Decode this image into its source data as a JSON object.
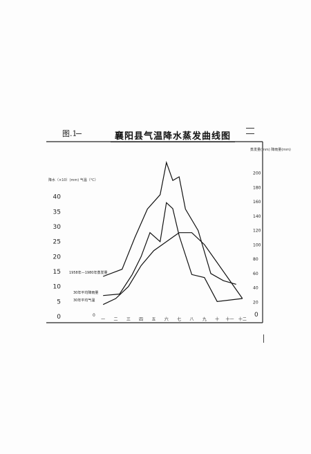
{
  "page": {
    "figure_label": "图.1",
    "title": "襄阳县气温降水蒸发曲线图"
  },
  "chart_data": {
    "type": "line",
    "title": "襄阳县气温降水蒸发曲线图",
    "y_left_label": "降水（×10）(mm) 气温（°C）",
    "y_right_label": "蒸发量(mm) 降雨量(mm)",
    "y_left_ticks": [
      "0",
      "5",
      "10",
      "15",
      "20",
      "25",
      "30",
      "35",
      "40"
    ],
    "y_right_ticks": [
      "20",
      "40",
      "60",
      "80",
      "100",
      "120",
      "140",
      "160",
      "180",
      "200"
    ],
    "y_left_range": [
      0,
      45
    ],
    "y_right_range": [
      0,
      220
    ],
    "x_categories": [
      "一",
      "二",
      "三",
      "四",
      "五",
      "六",
      "七",
      "八",
      "九",
      "十",
      "十一",
      "十二"
    ],
    "x_left_corner_label": "0",
    "x_right_corner_label": "0",
    "grid": false,
    "series": [
      {
        "name": "1958年—1980年蒸发量",
        "axis": "right",
        "x": [
          0.5,
          2,
          3,
          4,
          5,
          5.5,
          6,
          6.5,
          7,
          8,
          9,
          10,
          11
        ],
        "y": [
          56,
          66,
          110,
          150,
          170,
          215,
          190,
          195,
          150,
          120,
          60,
          50,
          45
        ]
      },
      {
        "name": "30年平均降雨量",
        "axis": "left",
        "x": [
          0.5,
          1.8,
          2.8,
          3.5,
          4.2,
          5,
          5.5,
          6,
          6.5,
          7.5,
          8.5,
          9.5,
          11.5
        ],
        "y": [
          7,
          7.5,
          14,
          20,
          28,
          25,
          38,
          36,
          27,
          14,
          13,
          5,
          6
        ]
      },
      {
        "name": "30年平均气温",
        "axis": "left",
        "x": [
          0.5,
          1.5,
          2.5,
          3.5,
          4.5,
          5.5,
          6.5,
          7.5,
          8.5,
          9.5,
          10.5,
          11.5
        ],
        "y": [
          4,
          6,
          10,
          17,
          22,
          25,
          28,
          28,
          24,
          18,
          12,
          6
        ]
      }
    ]
  }
}
